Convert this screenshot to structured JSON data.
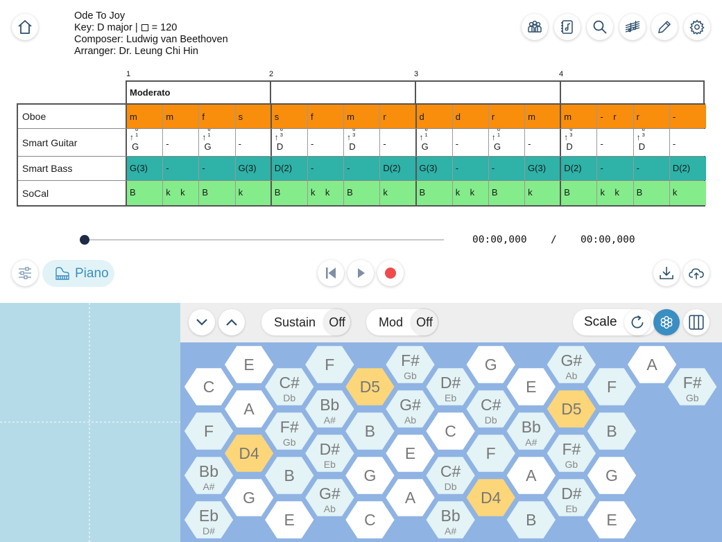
{
  "song": {
    "title": "Ode To Joy",
    "key_prefix": "Key: D major |",
    "tempo_suffix": "= 120",
    "composer": "Composer: Ludwig van Beethoven",
    "arranger": "Arranger: Dr. Leung Chi Hin"
  },
  "header_icons": [
    "home-icon",
    "group-icon",
    "score-library-icon",
    "search-icon",
    "music-score-icon",
    "edit-icon",
    "settings-icon"
  ],
  "score": {
    "measure_numbers": [
      "1",
      "2",
      "3",
      "4"
    ],
    "tempo_marks": [
      "Moderato",
      "",
      "",
      ""
    ],
    "tracks": [
      {
        "name": "Oboe",
        "cells": [
          "m",
          "m",
          "f",
          "s",
          "s",
          "f",
          "m",
          "r",
          "d",
          "d",
          "r",
          "m",
          "m",
          "-    r",
          "r",
          "-"
        ]
      },
      {
        "name": "Smart Guitar",
        "cells": [
          "G|6|1",
          "-",
          "G|6|1",
          "-",
          "D|6|3",
          "-",
          "D|6|3",
          "-",
          "G|6|1",
          "-",
          "G|6|1",
          "-",
          "D|6|3",
          "-",
          "D|6|3",
          "-"
        ]
      },
      {
        "name": "Smart Bass",
        "cells": [
          "G(3)",
          "-",
          "-",
          "G(3)",
          "D(2)",
          "-",
          "-",
          "D(2)",
          "G(3)",
          "-",
          "-",
          "G(3)",
          "D(2)",
          "-",
          "-",
          "D(2)"
        ]
      },
      {
        "name": "SoCal",
        "cells": [
          "B",
          "k    k",
          "B",
          "k",
          "B",
          "k    k",
          "B",
          "k",
          "B",
          "k    k",
          "B",
          "k",
          "B",
          "k    k",
          "B",
          "k"
        ]
      }
    ]
  },
  "player": {
    "current_time": "00:00,000",
    "separator": "/",
    "total_time": "00:00,000",
    "progress": 0
  },
  "instrument": {
    "label": "Piano"
  },
  "keyboard": {
    "sustain_label": "Sustain",
    "sustain_value": "Off",
    "mod_label": "Mod",
    "mod_value": "Off",
    "scale_label": "Scale"
  },
  "hex_keys": [
    [
      "C",
      "",
      "E",
      "",
      "C#",
      "Db",
      "F",
      "",
      "D5",
      "",
      "F#",
      "Gb",
      "D#",
      "Eb",
      "G",
      "",
      "E",
      "",
      "G#",
      "Ab",
      "F",
      "",
      "A",
      "",
      "F#",
      "Gb"
    ],
    [
      "F",
      "",
      "A",
      "",
      "F#",
      "Gb",
      "Bb",
      "A#",
      "B",
      "",
      "G#",
      "Ab",
      "C",
      "",
      "C#",
      "Db",
      "Bb",
      "A#",
      "D5",
      "",
      "B",
      ""
    ],
    [
      "Bb",
      "A#",
      "D4",
      "",
      "B",
      "",
      "D#",
      "Eb",
      "G",
      "",
      "E",
      "",
      "C#",
      "Db",
      "F",
      "",
      "A",
      "",
      "F#",
      "Gb",
      "G",
      ""
    ],
    [
      "Eb",
      "D#",
      "G",
      "",
      "E",
      "",
      "G#",
      "Ab",
      "C",
      "",
      "A",
      "",
      "Bb",
      "A#",
      "D4",
      "",
      "B",
      "",
      "D#",
      "Eb",
      "E",
      ""
    ]
  ],
  "colors": {
    "oboe": "#f98d0c",
    "bass": "#2fb2a8",
    "socal": "#84ec8a",
    "hex_normal": "#ffffff",
    "hex_pale": "#e3f3f6",
    "hex_root": "#fcd678",
    "hex_bg": "#8fb3e3",
    "accent": "#3a8ec1",
    "record": "#ef4b4b"
  }
}
